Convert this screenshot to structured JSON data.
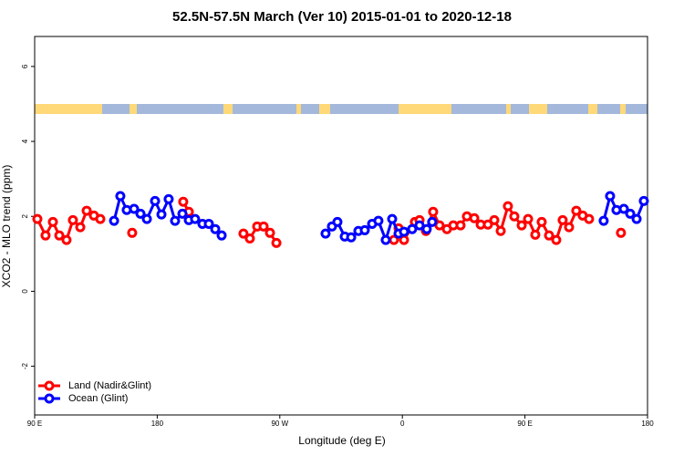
{
  "chart_data": {
    "type": "line",
    "title": "52.5N-57.5N March (Ver 10)   2015-01-01 to 2020-12-18",
    "x_label": "Longitude (deg E)",
    "y_label": "XCO2 - MLO trend (ppm)",
    "xlim": [
      90,
      540
    ],
    "ylim": [
      -3.3,
      6.8
    ],
    "xticks": [
      {
        "value": 90,
        "label": "90 E"
      },
      {
        "value": 180,
        "label": "180"
      },
      {
        "value": 270,
        "label": "90 W"
      },
      {
        "value": 360,
        "label": "0"
      },
      {
        "value": 450,
        "label": "90 E"
      },
      {
        "value": 540,
        "label": "180"
      }
    ],
    "yticks": [
      -2,
      0,
      2,
      4,
      6
    ],
    "legend": "bottom-left",
    "series": [
      {
        "name": "Land (Nadir&Glint)",
        "color": "#ff0000",
        "x": [
          92.0,
          98.0,
          103.4,
          108.1,
          113.4,
          118.1,
          123.5,
          128.2,
          133.5,
          138.2,
          null,
          161.6,
          null,
          199.1,
          203.2,
          null,
          243.3,
          248.0,
          253.4,
          258.1,
          262.8,
          267.5,
          null,
          353.8,
          357.2,
          361.2,
          369.2,
          372.6,
          377.3,
          382.6,
          387.3,
          392.7,
          397.4,
          402.7,
          407.4,
          412.8,
          417.5,
          422.8,
          427.5,
          432.2,
          437.5,
          442.2,
          447.6,
          452.3,
          457.6,
          462.3,
          467.7,
          473.0,
          477.7,
          482.4,
          487.7,
          492.4,
          497.1,
          null,
          520.5
        ],
        "values": [
          1.93,
          1.49,
          1.85,
          1.49,
          1.37,
          1.9,
          1.71,
          2.15,
          2.02,
          1.93,
          null,
          1.56,
          null,
          2.39,
          2.12,
          null,
          1.54,
          1.41,
          1.73,
          1.73,
          1.56,
          1.29,
          null,
          1.37,
          1.68,
          1.37,
          1.85,
          1.9,
          1.61,
          2.12,
          1.76,
          1.66,
          1.76,
          1.76,
          2.0,
          1.95,
          1.78,
          1.78,
          1.9,
          1.61,
          2.27,
          2.0,
          1.76,
          1.93,
          1.51,
          1.85,
          1.49,
          1.37,
          1.9,
          1.71,
          2.15,
          2.02,
          1.93,
          null,
          1.56
        ]
      },
      {
        "name": "Ocean (Glint)",
        "color": "#0000ff",
        "x": [
          148.3,
          152.9,
          157.6,
          163.0,
          167.7,
          172.4,
          178.4,
          183.1,
          188.4,
          193.1,
          198.5,
          203.2,
          207.8,
          213.2,
          217.9,
          222.6,
          227.3,
          null,
          303.6,
          308.3,
          312.3,
          317.7,
          322.4,
          327.7,
          332.4,
          337.8,
          342.4,
          347.8,
          352.5,
          357.2,
          361.2,
          367.2,
          372.6,
          377.9,
          381.9,
          null,
          507.8,
          512.5,
          517.2,
          522.6,
          527.3,
          532.0,
          537.3
        ],
        "values": [
          1.88,
          2.54,
          2.17,
          2.2,
          2.07,
          1.93,
          2.41,
          2.05,
          2.46,
          1.88,
          2.07,
          1.9,
          1.93,
          1.8,
          1.8,
          1.66,
          1.49,
          null,
          1.54,
          1.73,
          1.85,
          1.46,
          1.44,
          1.61,
          1.63,
          1.8,
          1.88,
          1.37,
          1.93,
          1.54,
          1.59,
          1.66,
          1.76,
          1.66,
          1.85,
          null,
          1.88,
          2.54,
          2.17,
          2.2,
          2.07,
          1.93,
          2.41
        ]
      }
    ]
  }
}
